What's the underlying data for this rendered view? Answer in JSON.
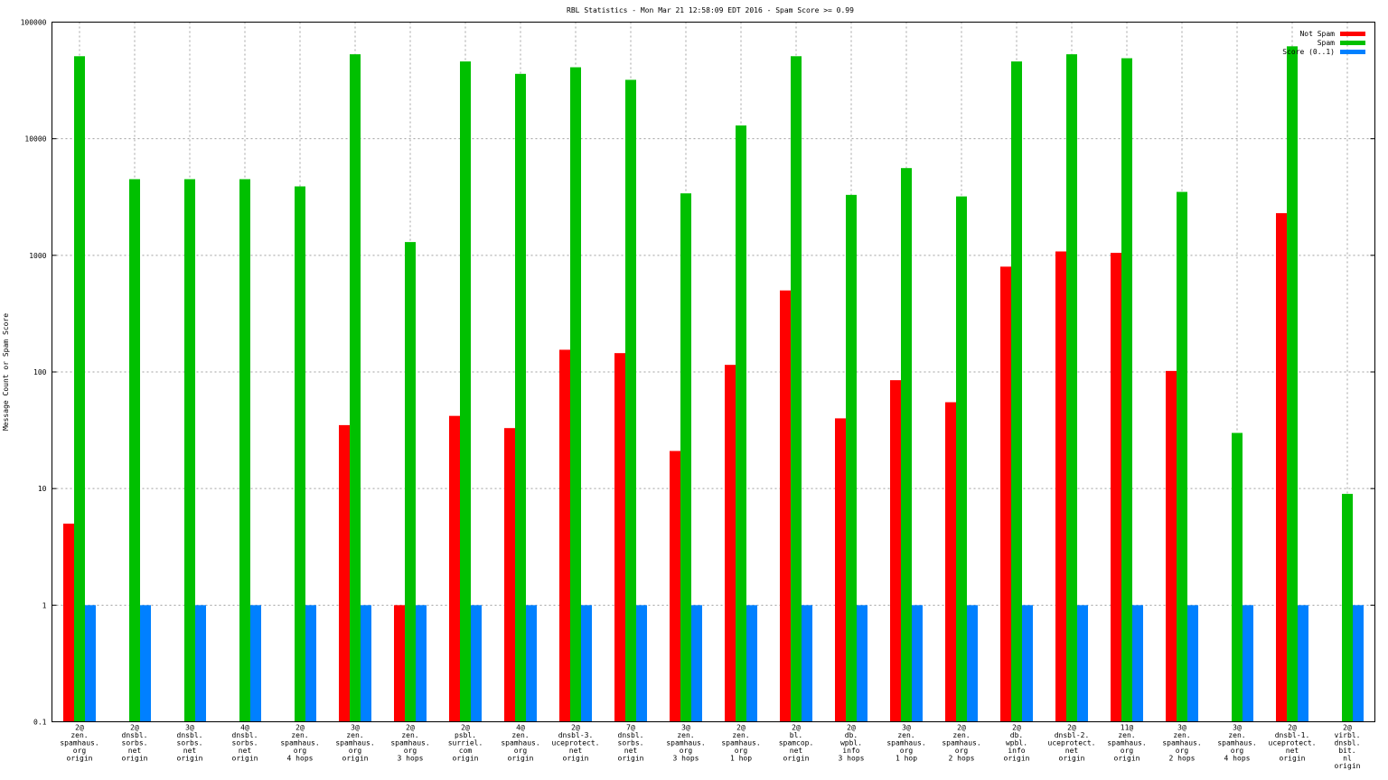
{
  "chart_data": {
    "type": "bar",
    "title": "RBL Statistics - Mon Mar 21 12:58:09 EDT 2016 - Spam Score >= 0.99",
    "ylabel": "Message Count or Spam Score",
    "xlabel": "",
    "yscale": "log",
    "ylim": [
      0.1,
      100000
    ],
    "yticks": [
      {
        "value": 0.1,
        "label": "0.1"
      },
      {
        "value": 1,
        "label": "1"
      },
      {
        "value": 10,
        "label": "10"
      },
      {
        "value": 100,
        "label": "100"
      },
      {
        "value": 1000,
        "label": "1000"
      },
      {
        "value": 10000,
        "label": "10000"
      },
      {
        "value": 100000,
        "label": "100000"
      }
    ],
    "grid": true,
    "legend_position": "top-right",
    "categories": [
      [
        "2@",
        "zen.",
        "spamhaus.",
        "org",
        "origin"
      ],
      [
        "2@",
        "dnsbl.",
        "sorbs.",
        "net",
        "origin"
      ],
      [
        "3@",
        "dnsbl.",
        "sorbs.",
        "net",
        "origin"
      ],
      [
        "4@",
        "dnsbl.",
        "sorbs.",
        "net",
        "origin"
      ],
      [
        "2@",
        "zen.",
        "spamhaus.",
        "org",
        "4 hops"
      ],
      [
        "3@",
        "zen.",
        "spamhaus.",
        "org",
        "origin"
      ],
      [
        "2@",
        "zen.",
        "spamhaus.",
        "org",
        "3 hops"
      ],
      [
        "2@",
        "psbl.",
        "surriel.",
        "com",
        "origin"
      ],
      [
        "4@",
        "zen.",
        "spamhaus.",
        "org",
        "origin"
      ],
      [
        "2@",
        "dnsbl-3.",
        "uceprotect.",
        "net",
        "origin"
      ],
      [
        "7@",
        "dnsbl.",
        "sorbs.",
        "net",
        "origin"
      ],
      [
        "3@",
        "zen.",
        "spamhaus.",
        "org",
        "3 hops"
      ],
      [
        "2@",
        "zen.",
        "spamhaus.",
        "org",
        "1 hop"
      ],
      [
        "2@",
        "bl.",
        "spamcop.",
        "net",
        "origin"
      ],
      [
        "2@",
        "db.",
        "wpbl.",
        "info",
        "3 hops"
      ],
      [
        "3@",
        "zen.",
        "spamhaus.",
        "org",
        "1 hop"
      ],
      [
        "2@",
        "zen.",
        "spamhaus.",
        "org",
        "2 hops"
      ],
      [
        "2@",
        "db.",
        "wpbl.",
        "info",
        "origin"
      ],
      [
        "2@",
        "dnsbl-2.",
        "uceprotect.",
        "net",
        "origin"
      ],
      [
        "11@",
        "zen.",
        "spamhaus.",
        "org",
        "origin"
      ],
      [
        "3@",
        "zen.",
        "spamhaus.",
        "org",
        "2 hops"
      ],
      [
        "3@",
        "zen.",
        "spamhaus.",
        "org",
        "4 hops"
      ],
      [
        "2@",
        "dnsbl-1.",
        "uceprotect.",
        "net",
        "origin"
      ],
      [
        "2@",
        "virbl.",
        "dnsbl.",
        "bit.",
        "nl",
        "origin"
      ]
    ],
    "series": [
      {
        "name": "Not Spam",
        "color": "#ff0000",
        "values": [
          5,
          null,
          null,
          null,
          null,
          35,
          1,
          42,
          33,
          155,
          145,
          21,
          115,
          500,
          40,
          85,
          55,
          800,
          1080,
          1050,
          102,
          null,
          2300,
          null
        ]
      },
      {
        "name": "Spam",
        "color": "#00c000",
        "values": [
          51000,
          4500,
          4500,
          4500,
          3900,
          53000,
          1300,
          46000,
          36000,
          41000,
          32000,
          3400,
          13000,
          51000,
          3300,
          5600,
          3200,
          46000,
          53000,
          49000,
          3500,
          30,
          62000,
          9
        ]
      },
      {
        "name": "Score (0..1)",
        "color": "#0080ff",
        "values": [
          1,
          1,
          1,
          1,
          1,
          1,
          1,
          1,
          1,
          1,
          1,
          1,
          1,
          1,
          1,
          1,
          1,
          1,
          1,
          1,
          1,
          1,
          1,
          1
        ]
      }
    ]
  }
}
